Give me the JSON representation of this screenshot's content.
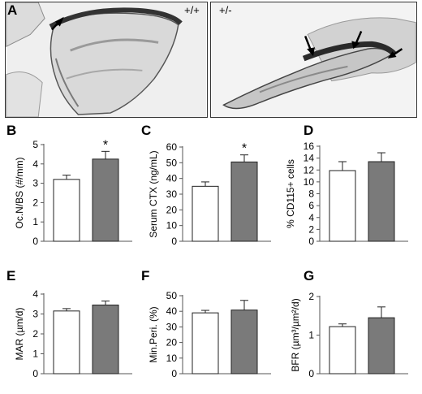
{
  "panel_a": {
    "letter": "A",
    "left_label": "+/+",
    "right_label": "+/-"
  },
  "colors": {
    "wt_bar": "#ffffff",
    "het_bar": "#7a7a7a",
    "bar_stroke": "#222222"
  },
  "chart_data": [
    {
      "panel": "B",
      "type": "bar",
      "categories": [
        "+/+",
        "+/-"
      ],
      "values": [
        3.2,
        4.25
      ],
      "errors": [
        0.22,
        0.4
      ],
      "ylabel": "Oc.N/BS (#/mm)",
      "ylim": [
        0,
        5
      ],
      "yticks": [
        "0",
        "1",
        "2",
        "3",
        "4",
        "5"
      ],
      "significance": [
        "",
        "*"
      ]
    },
    {
      "panel": "C",
      "type": "bar",
      "categories": [
        "+/+",
        "+/-"
      ],
      "values": [
        35,
        50.5
      ],
      "errors": [
        2.8,
        4.5
      ],
      "ylabel": "Serum CTX (ng/mL)",
      "ylim": [
        0,
        60
      ],
      "yticks": [
        "0",
        "10",
        "20",
        "30",
        "40",
        "50",
        "60"
      ],
      "significance": [
        "",
        "*"
      ]
    },
    {
      "panel": "D",
      "type": "bar",
      "categories": [
        "+/+",
        "+/-"
      ],
      "values": [
        11.9,
        13.4
      ],
      "errors": [
        1.5,
        1.5
      ],
      "ylabel": "% CD115+ cells",
      "ylim": [
        0,
        16
      ],
      "yticks": [
        "0",
        "2",
        "4",
        "6",
        "8",
        "10",
        "12",
        "14",
        "16"
      ],
      "significance": [
        "",
        ""
      ]
    },
    {
      "panel": "E",
      "type": "bar",
      "categories": [
        "+/+",
        "+/-"
      ],
      "values": [
        3.15,
        3.45
      ],
      "errors": [
        0.12,
        0.2
      ],
      "ylabel": "MAR (µm/d)",
      "ylim": [
        0,
        4
      ],
      "yticks": [
        "0",
        "1",
        "2",
        "3",
        "4"
      ],
      "significance": [
        "",
        ""
      ]
    },
    {
      "panel": "F",
      "type": "bar",
      "categories": [
        "+/+",
        "+/-"
      ],
      "values": [
        39,
        40.8
      ],
      "errors": [
        1.6,
        6.2
      ],
      "ylabel": "Min.Peri. (%)",
      "ylim": [
        0,
        50
      ],
      "yticks": [
        "0",
        "10",
        "20",
        "30",
        "40",
        "50"
      ],
      "significance": [
        "",
        ""
      ]
    },
    {
      "panel": "G",
      "type": "bar",
      "categories": [
        "+/+",
        "+/-"
      ],
      "values": [
        1.22,
        1.45
      ],
      "errors": [
        0.07,
        0.28
      ],
      "ylabel": "BFR (µm³/µm²/d)",
      "ylim": [
        0,
        2
      ],
      "yticks": [
        "0",
        "1",
        "2"
      ],
      "significance": [
        "",
        ""
      ]
    }
  ]
}
